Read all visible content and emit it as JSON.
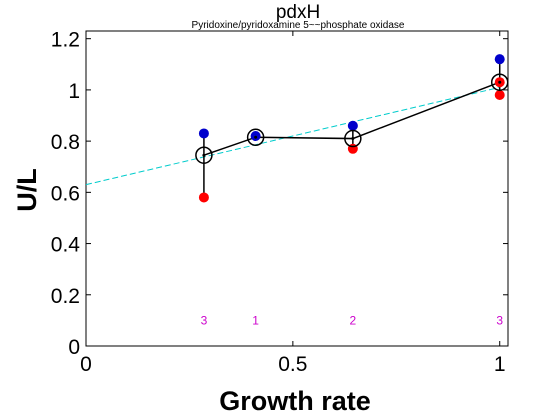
{
  "chart_data": {
    "type": "scatter",
    "title": "pdxH",
    "subtitle": "Pyridoxine/pyridoxamine 5~~phosphate oxidase",
    "xlabel": "Growth rate",
    "ylabel": "U/L",
    "xlim": [
      0,
      1.02
    ],
    "ylim": [
      0,
      1.23
    ],
    "xticks": [
      "0",
      "0.5",
      "1"
    ],
    "yticks": [
      "0",
      "0.2",
      "0.4",
      "0.6",
      "0.8",
      "1",
      "1.2"
    ],
    "grid": false,
    "series": [
      {
        "color": "#0000cc",
        "x": [
          0.285,
          0.41,
          0.645,
          1.0
        ],
        "y": [
          0.83,
          0.82,
          0.86,
          1.12
        ]
      },
      {
        "color": "#ff0000",
        "x": [
          0.285,
          0.645,
          1.0,
          1.0
        ],
        "y": [
          0.58,
          0.77,
          0.98,
          1.03
        ]
      },
      {
        "color": "#000000",
        "marker": "open-circle-line",
        "x": [
          0.285,
          0.41,
          0.645,
          1.0
        ],
        "y": [
          0.745,
          0.815,
          0.81,
          1.03
        ]
      }
    ],
    "errorbars": [
      {
        "x": 0.285,
        "low": 0.58,
        "high": 0.83
      },
      {
        "x": 0.645,
        "low": 0.77,
        "high": 0.86
      },
      {
        "x": 1.0,
        "low": 0.98,
        "high": 1.12
      }
    ],
    "fit_line": {
      "color": "#00cccc",
      "style": "dashed",
      "x": [
        0,
        1.0
      ],
      "y": [
        0.63,
        1.01
      ]
    },
    "count_labels": {
      "color": "#cc00cc",
      "y": 0.1,
      "x": [
        0.285,
        0.41,
        0.645,
        1.0
      ],
      "text": [
        "3",
        "1",
        "2",
        "3"
      ]
    }
  }
}
